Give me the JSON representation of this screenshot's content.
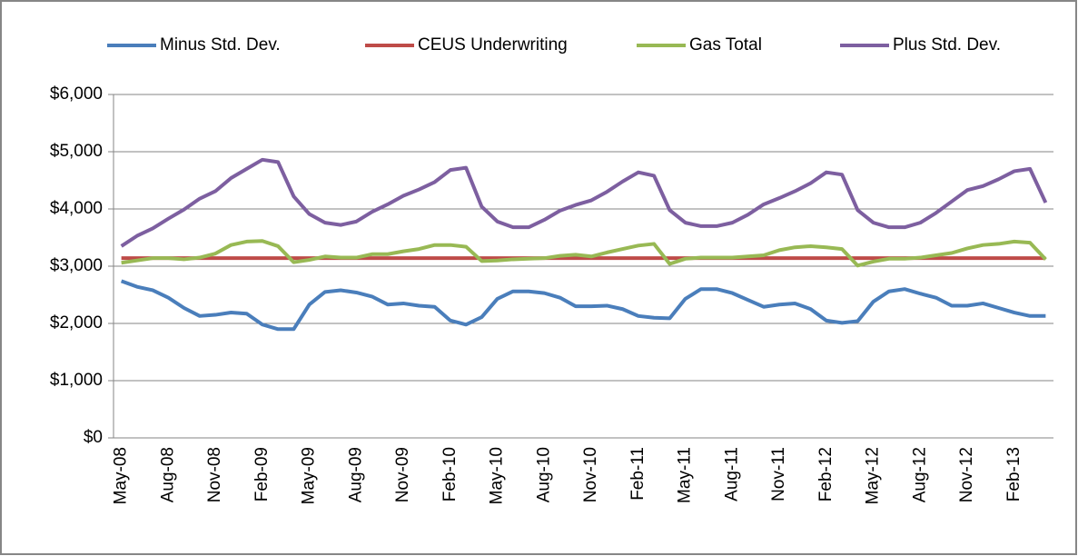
{
  "chart_data": {
    "type": "line",
    "categories": [
      "May-08",
      null,
      null,
      "Aug-08",
      null,
      null,
      "Nov-08",
      null,
      null,
      "Feb-09",
      null,
      null,
      "May-09",
      null,
      null,
      "Aug-09",
      null,
      null,
      "Nov-09",
      null,
      null,
      "Feb-10",
      null,
      null,
      "May-10",
      null,
      null,
      "Aug-10",
      null,
      null,
      "Nov-10",
      null,
      null,
      "Feb-11",
      null,
      null,
      "May-11",
      null,
      null,
      "Aug-11",
      null,
      null,
      "Nov-11",
      null,
      null,
      "Feb-12",
      null,
      null,
      "May-12",
      null,
      null,
      "Aug-12",
      null,
      null,
      "Nov-12",
      null,
      null,
      "Feb-13",
      null,
      null
    ],
    "series": [
      {
        "name": "Minus Std. Dev.",
        "color": "#4a7ebb",
        "values": [
          2740,
          2640,
          2580,
          2450,
          2270,
          2130,
          2150,
          2190,
          2170,
          1980,
          1900,
          1900,
          2330,
          2550,
          2580,
          2540,
          2470,
          2330,
          2350,
          2310,
          2290,
          2050,
          1980,
          2110,
          2430,
          2560,
          2560,
          2530,
          2450,
          2300,
          2300,
          2310,
          2250,
          2130,
          2100,
          2090,
          2430,
          2600,
          2600,
          2530,
          2410,
          2290,
          2330,
          2350,
          2250,
          2050,
          2010,
          2040,
          2380,
          2560,
          2600,
          2520,
          2450,
          2310,
          2310,
          2350,
          2270,
          2190,
          2130,
          2130
        ]
      },
      {
        "name": "CEUS Underwriting",
        "color": "#be4b48",
        "values": [
          3140,
          3140,
          3140,
          3140,
          3140,
          3140,
          3140,
          3140,
          3140,
          3140,
          3140,
          3140,
          3140,
          3140,
          3140,
          3140,
          3140,
          3140,
          3140,
          3140,
          3140,
          3140,
          3140,
          3140,
          3140,
          3140,
          3140,
          3140,
          3140,
          3140,
          3140,
          3140,
          3140,
          3140,
          3140,
          3140,
          3140,
          3140,
          3140,
          3140,
          3140,
          3140,
          3140,
          3140,
          3140,
          3140,
          3140,
          3140,
          3140,
          3140,
          3140,
          3140,
          3140,
          3140,
          3140,
          3140,
          3140,
          3140,
          3140,
          3140
        ]
      },
      {
        "name": "Gas Total",
        "color": "#98b954",
        "values": [
          3060,
          3100,
          3140,
          3140,
          3120,
          3150,
          3220,
          3370,
          3430,
          3440,
          3350,
          3070,
          3110,
          3170,
          3150,
          3150,
          3210,
          3210,
          3260,
          3300,
          3370,
          3370,
          3340,
          3090,
          3100,
          3120,
          3130,
          3140,
          3180,
          3200,
          3170,
          3240,
          3300,
          3360,
          3390,
          3040,
          3130,
          3150,
          3150,
          3150,
          3170,
          3190,
          3280,
          3330,
          3350,
          3330,
          3300,
          3010,
          3080,
          3130,
          3130,
          3150,
          3190,
          3230,
          3310,
          3370,
          3390,
          3430,
          3410,
          3120
        ]
      },
      {
        "name": "Plus Std. Dev.",
        "color": "#7d5fa0",
        "values": [
          3350,
          3530,
          3660,
          3830,
          3990,
          4180,
          4310,
          4540,
          4700,
          4860,
          4820,
          4220,
          3910,
          3760,
          3720,
          3780,
          3950,
          4080,
          4230,
          4340,
          4470,
          4680,
          4720,
          4040,
          3780,
          3680,
          3680,
          3810,
          3970,
          4070,
          4150,
          4300,
          4480,
          4640,
          4580,
          3980,
          3760,
          3700,
          3700,
          3760,
          3900,
          4080,
          4190,
          4310,
          4450,
          4640,
          4600,
          3980,
          3760,
          3680,
          3680,
          3760,
          3930,
          4130,
          4330,
          4400,
          4520,
          4660,
          4700,
          4110
        ]
      }
    ],
    "ylim": [
      0,
      6000
    ],
    "yticks": [
      {
        "value": 0,
        "label": "$0"
      },
      {
        "value": 1000,
        "label": "$1,000"
      },
      {
        "value": 2000,
        "label": "$2,000"
      },
      {
        "value": 3000,
        "label": "$3,000"
      },
      {
        "value": 4000,
        "label": "$4,000"
      },
      {
        "value": 5000,
        "label": "$5,000"
      },
      {
        "value": 6000,
        "label": "$6,000"
      }
    ],
    "grid": true,
    "legend": "top"
  }
}
